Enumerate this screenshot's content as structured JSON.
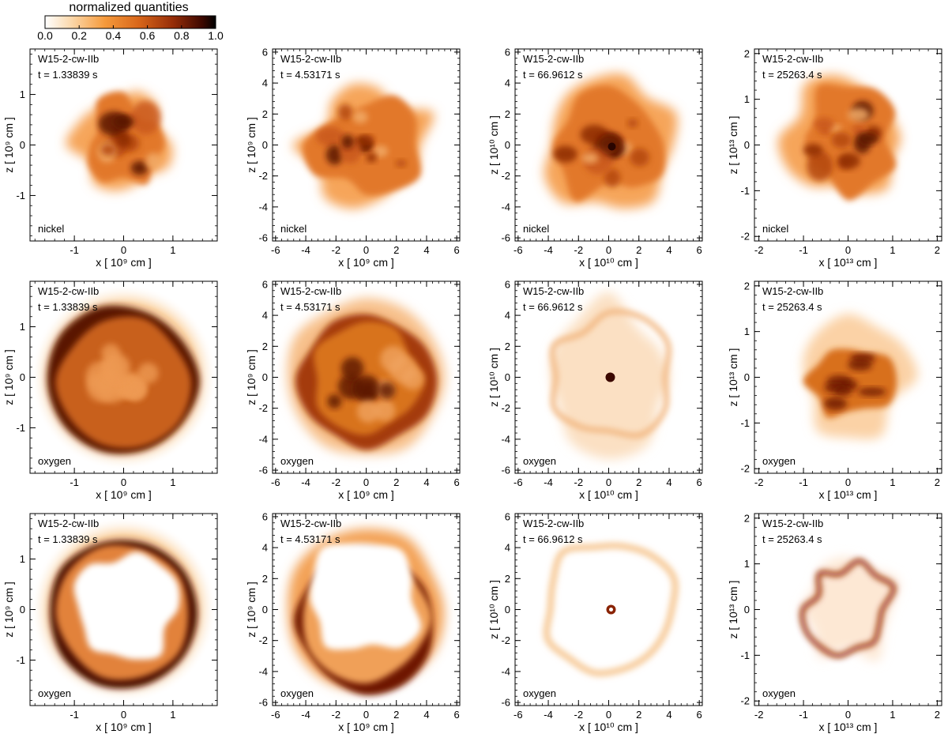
{
  "colorbar": {
    "title": "normalized quantities",
    "ticks": [
      "0.0",
      "0.2",
      "0.4",
      "0.6",
      "0.8",
      "1.0"
    ],
    "tick_values": [
      0.0,
      0.2,
      0.4,
      0.6,
      0.8,
      1.0
    ],
    "range": [
      0.0,
      1.0
    ],
    "colors": [
      "#ffffff",
      "#fbd9ad",
      "#f59a3c",
      "#d8661a",
      "#962d08",
      "#3d0800",
      "#000000"
    ]
  },
  "chart_data": {
    "type": "heatmap",
    "model": "W15-2-cw-IIb",
    "rows": [
      {
        "quantity": "nickel",
        "mode": "blob"
      },
      {
        "quantity": "oxygen",
        "mode": "shell"
      },
      {
        "quantity": "oxygen",
        "mode": "ring"
      }
    ],
    "columns": [
      {
        "time_label": "t = 1.33839 s",
        "unit_label": "10⁹",
        "xlabel": "x [ 10⁹ cm ]",
        "ylabel": "z [ 10⁹ cm ]",
        "xlim": [
          -1.9,
          1.9
        ],
        "ylim": [
          -1.9,
          1.9
        ],
        "xticks": [
          -1,
          0,
          1
        ],
        "yticks": [
          -1,
          0,
          1
        ],
        "xtick_labels": [
          "-1",
          "0",
          "1"
        ],
        "ytick_labels": [
          "-1",
          "0",
          "1"
        ]
      },
      {
        "time_label": "t = 4.53171 s",
        "unit_label": "10⁹",
        "xlabel": "x [ 10⁹ cm ]",
        "ylabel": "z [ 10⁹ cm ]",
        "xlim": [
          -6.2,
          6.2
        ],
        "ylim": [
          -6.2,
          6.2
        ],
        "xticks": [
          -6,
          -4,
          -2,
          0,
          2,
          4,
          6
        ],
        "yticks": [
          -6,
          -4,
          -2,
          0,
          2,
          4,
          6
        ],
        "xtick_labels": [
          "-6",
          "-4",
          "-2",
          "0",
          "2",
          "4",
          "6"
        ],
        "ytick_labels": [
          "-6",
          "-4",
          "-2",
          "0",
          "2",
          "4",
          "6"
        ]
      },
      {
        "time_label": "t = 66.9612 s",
        "unit_label": "10¹⁰",
        "xlabel": "x [ 10¹⁰ cm ]",
        "ylabel": "z [ 10¹⁰ cm ]",
        "xlim": [
          -6.2,
          6.2
        ],
        "ylim": [
          -6.2,
          6.2
        ],
        "xticks": [
          -6,
          -4,
          -2,
          0,
          2,
          4,
          6
        ],
        "yticks": [
          -6,
          -4,
          -2,
          0,
          2,
          4,
          6
        ],
        "xtick_labels": [
          "-6",
          "-4",
          "-2",
          "0",
          "2",
          "4",
          "6"
        ],
        "ytick_labels": [
          "-6",
          "-4",
          "-2",
          "0",
          "2",
          "4",
          "6"
        ]
      },
      {
        "time_label": "t = 25263.4 s",
        "unit_label": "10¹³",
        "xlabel": "x [ 10¹³ cm ]",
        "ylabel": "z [ 10¹³ cm ]",
        "xlim": [
          -2.1,
          2.1
        ],
        "ylim": [
          -2.1,
          2.1
        ],
        "xticks": [
          -2,
          -1,
          0,
          1,
          2
        ],
        "yticks": [
          -2,
          -1,
          0,
          1,
          2
        ],
        "xtick_labels": [
          "-2",
          "-1",
          "0",
          "1",
          "2"
        ],
        "ytick_labels": [
          "-2",
          "-1",
          "0",
          "1",
          "2"
        ]
      }
    ]
  }
}
